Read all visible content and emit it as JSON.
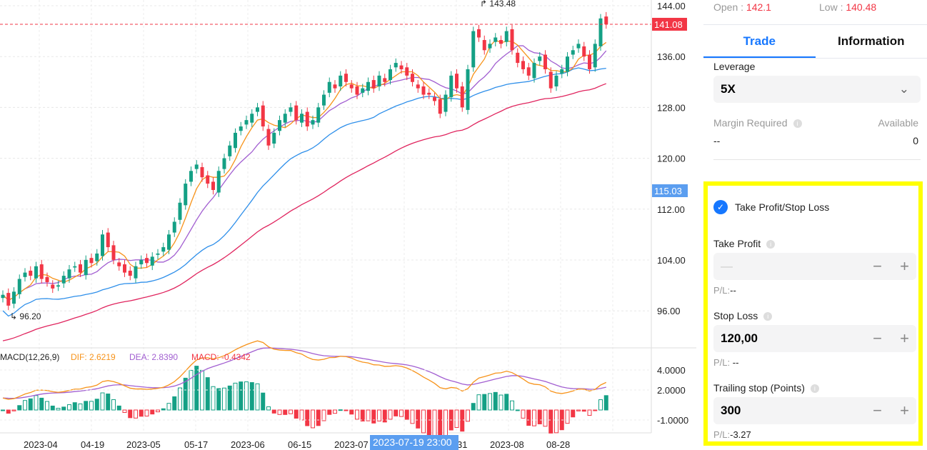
{
  "header": {
    "open_label": "Open : ",
    "open_value": "142.1",
    "low_label": "Low : ",
    "low_value": "140.48"
  },
  "tabs": [
    {
      "label": "Trade",
      "active": true
    },
    {
      "label": "Information",
      "active": false
    }
  ],
  "trade": {
    "leverage_label": "Leverage",
    "leverage_value": "5X",
    "margin_label": "Margin Required",
    "margin_value": "--",
    "available_label": "Available",
    "available_value": "0",
    "tpsl_label": "Take Profit/Stop Loss",
    "tpsl_checked": true,
    "take_profit": {
      "label": "Take Profit",
      "value": "—",
      "pl_label": "P/L:",
      "pl_value": "--"
    },
    "stop_loss": {
      "label": "Stop Loss",
      "value": "120,00",
      "pl_label": "P/L: ",
      "pl_value": "--"
    },
    "trailing_stop": {
      "label": "Trailing stop (Points)",
      "value": "300",
      "pl_label": "P/L:",
      "pl_value": "-3.27"
    }
  },
  "colors": {
    "up": "#14a085",
    "down": "#f23645",
    "accent": "#1677ff",
    "highlight": "#ffff00"
  },
  "chart_data": {
    "type": "candlestick",
    "price_axis": [
      "144.00",
      "136.00",
      "128.00",
      "120.00",
      "112.00",
      "104.00",
      "96.00"
    ],
    "ylim": [
      96,
      144
    ],
    "current_price": "141.08",
    "crosshair_price": "115.03",
    "crosshair_date": "2023-07-19 23:00",
    "max_label": "143.48",
    "min_label": "96.20",
    "x_labels": [
      "2023-04",
      "04-19",
      "2023-05",
      "05-17",
      "2023-06",
      "06-15",
      "2023-07",
      "31",
      "2023-08",
      "08-28"
    ],
    "closes": [
      98.5,
      96.8,
      99,
      101,
      102,
      101.5,
      103,
      101,
      100.5,
      99.5,
      100,
      101.5,
      102.5,
      103,
      102,
      104,
      103.5,
      105,
      108,
      106,
      104,
      103,
      102,
      101.5,
      103,
      104,
      103.5,
      104.5,
      105,
      106,
      108,
      110,
      113,
      116,
      118,
      119,
      117,
      116,
      115,
      118,
      120,
      122,
      124,
      125,
      126,
      127,
      128,
      125,
      122,
      124,
      126,
      127,
      128,
      126,
      127,
      125,
      126,
      128,
      130,
      132,
      131,
      133,
      132,
      131,
      130,
      131,
      132,
      131,
      133,
      132,
      134,
      135,
      134,
      133,
      132,
      131,
      130,
      130,
      129,
      127,
      130,
      133,
      131,
      128,
      134,
      140,
      139,
      137,
      138,
      139,
      138,
      140,
      137,
      135,
      134,
      133,
      135,
      136,
      134,
      131,
      133,
      134,
      136,
      137,
      138,
      136,
      134,
      138,
      142,
      141.08
    ],
    "macd": {
      "title": "MACD(12,26,9)",
      "dif_label": "DIF: 2.6219",
      "dea_label": "DEA: 2.8390",
      "macd_label": "MACD: -0.4342",
      "axis": [
        "4.0000",
        "2.0000",
        "-1.0000"
      ]
    }
  }
}
